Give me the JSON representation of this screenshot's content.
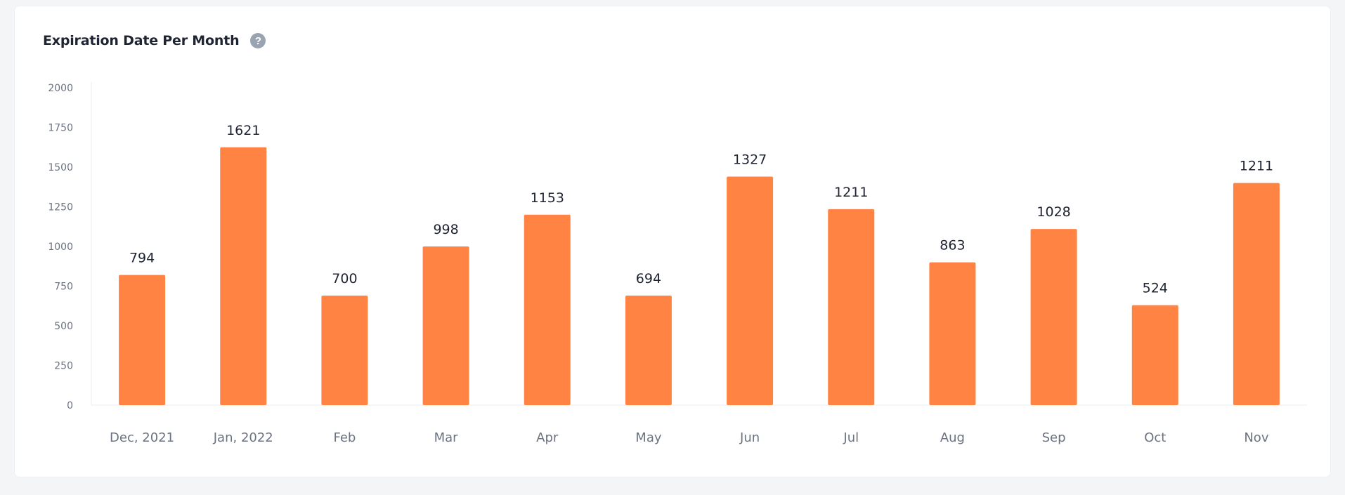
{
  "card": {
    "title": "Expiration Date Per Month",
    "help_icon": "question-circle-icon",
    "help_glyph": "?"
  },
  "colors": {
    "bar": "#ff8444",
    "axis_text": "#6b7280",
    "label_text": "#1f2433",
    "grid": "#eceef2"
  },
  "chart_data": {
    "type": "bar",
    "title": "Expiration Date Per Month",
    "xlabel": "",
    "ylabel": "",
    "categories": [
      "Dec, 2021",
      "Jan, 2022",
      "Feb",
      "Mar",
      "Apr",
      "May",
      "Jun",
      "Jul",
      "Aug",
      "Sep",
      "Oct",
      "Nov"
    ],
    "values": [
      794,
      1621,
      700,
      998,
      1153,
      694,
      1327,
      1211,
      863,
      1028,
      524,
      1211
    ],
    "bar_heights": [
      820,
      1625,
      690,
      1000,
      1200,
      690,
      1440,
      1235,
      900,
      1110,
      630,
      1400
    ],
    "ylim": [
      0,
      2000
    ],
    "yticks": [
      0,
      250,
      500,
      750,
      1000,
      1250,
      1500,
      1750,
      2000
    ],
    "grid": false,
    "legend": "none",
    "data_labels": true
  }
}
